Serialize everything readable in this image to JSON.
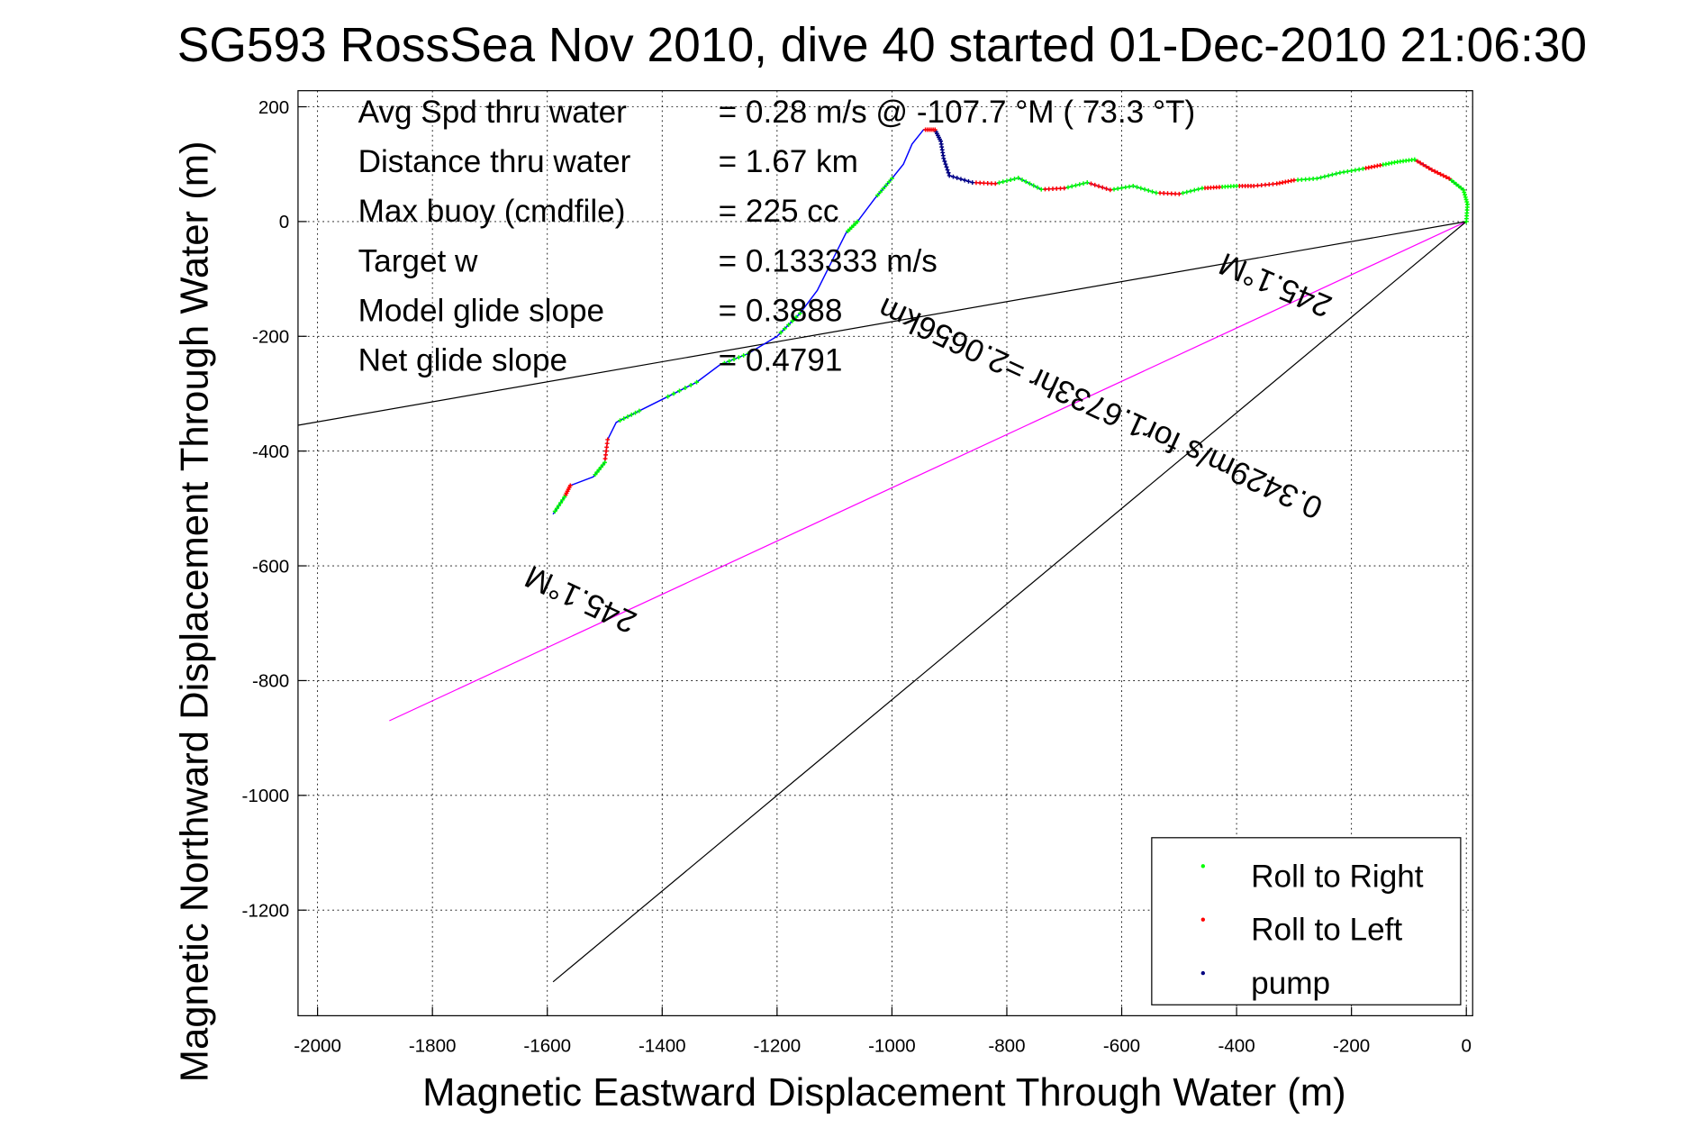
{
  "chart_data": {
    "type": "scatter",
    "title": "SG593 RossSea Nov 2010, dive 40 started 01-Dec-2010 21:06:30",
    "xlabel": "Magnetic Eastward Displacement Through Water (m)",
    "ylabel": "Magnetic Northward Displacement Through Water (m)",
    "xlim": [
      -2034,
      11
    ],
    "ylim": [
      -1384,
      228
    ],
    "grid": true,
    "xticks": [
      -2000,
      -1800,
      -1600,
      -1400,
      -1200,
      -1000,
      -800,
      -600,
      -400,
      -200,
      0
    ],
    "yticks": [
      200,
      0,
      -200,
      -400,
      -600,
      -800,
      -1000,
      -1200
    ],
    "info": [
      {
        "label": "Avg Spd thru water",
        "value": "=  0.28 m/s @ -107.7 °M ( 73.3 °T)"
      },
      {
        "label": "Distance thru water",
        "value": "=  1.67 km"
      },
      {
        "label": "Max buoy (cmdfile)",
        "value": "= 225 cc"
      },
      {
        "label": "Target w",
        "value": "= 0.133333 m/s"
      },
      {
        "label": "Model glide slope",
        "value": "= 0.3888"
      },
      {
        "label": "Net glide slope",
        "value": "= 0.4791"
      }
    ],
    "legend": {
      "placement": "bottom-right",
      "entries": [
        {
          "label": "Roll to Right",
          "color": "#00ff00"
        },
        {
          "label": "Roll to Left",
          "color": "#ff0000"
        },
        {
          "label": "pump",
          "color": "#000080"
        }
      ]
    },
    "lines": [
      {
        "name": "current-line",
        "color": "#ff00ff",
        "from": [
          0,
          0
        ],
        "to": [
          -1875,
          -870
        ]
      },
      {
        "name": "heading-line-1",
        "color": "#000000",
        "from": [
          0,
          0
        ],
        "to": [
          -2034,
          -355
        ]
      },
      {
        "name": "heading-line-2",
        "color": "#000000",
        "from": [
          0,
          0
        ],
        "to": [
          -1590,
          -1325
        ]
      }
    ],
    "annotations": {
      "current": "0.3429m/s for1.6733hr =2.0656km",
      "heading_upper": "245.1°M",
      "heading_lower": "245.1°M"
    },
    "track_color": "#0000ff",
    "track": [
      [
        0,
        0,
        "R"
      ],
      [
        2,
        30,
        "R"
      ],
      [
        -5,
        55,
        "R"
      ],
      [
        -30,
        75,
        "L"
      ],
      [
        -60,
        90,
        "L"
      ],
      [
        -90,
        108,
        "R"
      ],
      [
        -120,
        104,
        "R"
      ],
      [
        -150,
        98,
        "L"
      ],
      [
        -180,
        92,
        "R"
      ],
      [
        -220,
        85,
        "R"
      ],
      [
        -260,
        75,
        "R"
      ],
      [
        -300,
        72,
        "L"
      ],
      [
        -330,
        66,
        "L"
      ],
      [
        -370,
        62,
        "L"
      ],
      [
        -400,
        62,
        "R"
      ],
      [
        -430,
        60,
        "L"
      ],
      [
        -460,
        58,
        "R"
      ],
      [
        -500,
        48,
        "L"
      ],
      [
        -540,
        50,
        "R"
      ],
      [
        -580,
        62,
        "R"
      ],
      [
        -620,
        55,
        "L"
      ],
      [
        -660,
        68,
        "R"
      ],
      [
        -700,
        58,
        "L"
      ],
      [
        -740,
        56,
        "R"
      ],
      [
        -780,
        76,
        "R"
      ],
      [
        -820,
        66,
        "L"
      ],
      [
        -860,
        68,
        "P"
      ],
      [
        -900,
        80,
        "P"
      ],
      [
        -910,
        110,
        "P"
      ],
      [
        -915,
        140,
        "P"
      ],
      [
        -925,
        160,
        "L"
      ],
      [
        -945,
        160,
        "N"
      ],
      [
        -965,
        135,
        "N"
      ],
      [
        -980,
        100,
        "N"
      ],
      [
        -1000,
        75,
        "R"
      ],
      [
        -1030,
        40,
        "N"
      ],
      [
        -1060,
        0,
        "R"
      ],
      [
        -1080,
        -20,
        "N"
      ],
      [
        -1100,
        -60,
        "N"
      ],
      [
        -1130,
        -120,
        "N"
      ],
      [
        -1160,
        -160,
        "R"
      ],
      [
        -1200,
        -200,
        "N"
      ],
      [
        -1250,
        -230,
        "R"
      ],
      [
        -1300,
        -250,
        "N"
      ],
      [
        -1340,
        -280,
        "R"
      ],
      [
        -1400,
        -310,
        "N"
      ],
      [
        -1440,
        -330,
        "R"
      ],
      [
        -1480,
        -350,
        "N"
      ],
      [
        -1495,
        -380,
        "L"
      ],
      [
        -1500,
        -420,
        "R"
      ],
      [
        -1520,
        -445,
        "N"
      ],
      [
        -1560,
        -460,
        "L"
      ],
      [
        -1570,
        -480,
        "R"
      ],
      [
        -1590,
        -510,
        "L"
      ]
    ]
  }
}
